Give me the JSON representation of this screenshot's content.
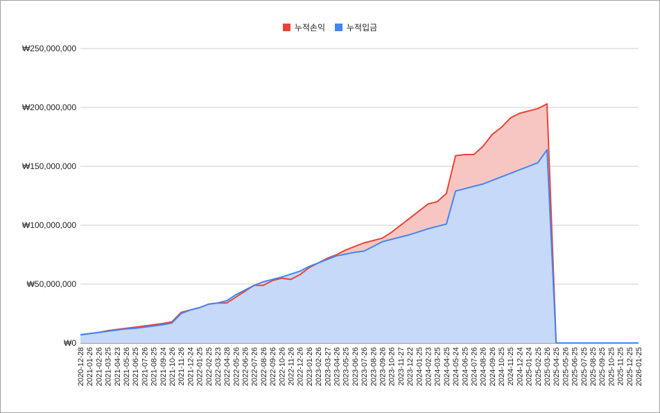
{
  "legend": {
    "profit_label": "누적손익",
    "deposit_label": "누적입금"
  },
  "colors": {
    "profit": "#ea4335",
    "profit_fill": "#f8c6c2",
    "deposit": "#4285f4",
    "deposit_fill": "#c6d9f8",
    "grid": "#cccccc"
  },
  "chart_data": {
    "type": "area",
    "title": "",
    "xlabel": "",
    "ylabel": "",
    "ylim": [
      0,
      250000000
    ],
    "y_ticks": [
      0,
      50000000,
      100000000,
      150000000,
      200000000,
      250000000
    ],
    "y_tick_labels": [
      "₩0",
      "₩50,000,000",
      "₩100,000,000",
      "₩150,000,000",
      "₩200,000,000",
      "₩250,000,000"
    ],
    "legend_position": "top-center",
    "grid": true,
    "categories": [
      "2020-12-28",
      "2021-01-26",
      "2021-02-26",
      "2021-03-25",
      "2021-04-23",
      "2021-05-26",
      "2021-06-25",
      "2021-07-26",
      "2021-08-25",
      "2021-09-24",
      "2021-10-26",
      "2021-11-26",
      "2021-12-24",
      "2022-01-25",
      "2022-02-25",
      "2022-03-23",
      "2022-04-28",
      "2022-05-26",
      "2022-06-26",
      "2022-07-26",
      "2022-08-26",
      "2022-09-26",
      "2022-10-26",
      "2022-11-26",
      "2022-12-26",
      "2023-01-26",
      "2023-02-26",
      "2023-03-27",
      "2023-04-26",
      "2023-05-25",
      "2023-06-26",
      "2023-07-26",
      "2023-08-26",
      "2023-09-26",
      "2023-10-26",
      "2023-11-27",
      "2023-12-22",
      "2024-01-25",
      "2024-02-23",
      "2024-03-25",
      "2024-04-25",
      "2024-05-24",
      "2024-06-25",
      "2024-07-26",
      "2024-08-26",
      "2024-09-26",
      "2024-10-25",
      "2024-11-25",
      "2024-12-24",
      "2025-01-24",
      "2025-02-25",
      "2025-03-26",
      "2025-04-25",
      "2025-05-26",
      "2025-06-25",
      "2025-07-25",
      "2025-08-25",
      "2025-09-25",
      "2025-10-25",
      "2025-11-25",
      "2025-12-25",
      "2026-01-25"
    ],
    "series": [
      {
        "name": "누적손익",
        "values": [
          7000000,
          8000000,
          9000000,
          10500000,
          11500000,
          12500000,
          13500000,
          14500000,
          15500000,
          16500000,
          18000000,
          26000000,
          28000000,
          30000000,
          33000000,
          34000000,
          34000000,
          39000000,
          44000000,
          49000000,
          49000000,
          53000000,
          55000000,
          54000000,
          58000000,
          64000000,
          68000000,
          72000000,
          75000000,
          79000000,
          82000000,
          85000000,
          87000000,
          89000000,
          94000000,
          100000000,
          106000000,
          112000000,
          118000000,
          120000000,
          127000000,
          159000000,
          160000000,
          160000000,
          167000000,
          177000000,
          183000000,
          191000000,
          195000000,
          197000000,
          199000000,
          203000000,
          0,
          0,
          0,
          0,
          0,
          0,
          0,
          0,
          0,
          0
        ]
      },
      {
        "name": "누적입금",
        "values": [
          7000000,
          8000000,
          9000000,
          10000000,
          11000000,
          12000000,
          12500000,
          13500000,
          14500000,
          15500000,
          17000000,
          25000000,
          28000000,
          30000000,
          33000000,
          34000000,
          36000000,
          41000000,
          45000000,
          49000000,
          52000000,
          54000000,
          56000000,
          58500000,
          61000000,
          65000000,
          68000000,
          71000000,
          74000000,
          75500000,
          77000000,
          78000000,
          82000000,
          86000000,
          88000000,
          90000000,
          92000000,
          94500000,
          97000000,
          99000000,
          101000000,
          129000000,
          131000000,
          133000000,
          135000000,
          138000000,
          141000000,
          144000000,
          147000000,
          150000000,
          153000000,
          164000000,
          0,
          0,
          0,
          0,
          0,
          0,
          0,
          0,
          0,
          0
        ]
      }
    ]
  }
}
